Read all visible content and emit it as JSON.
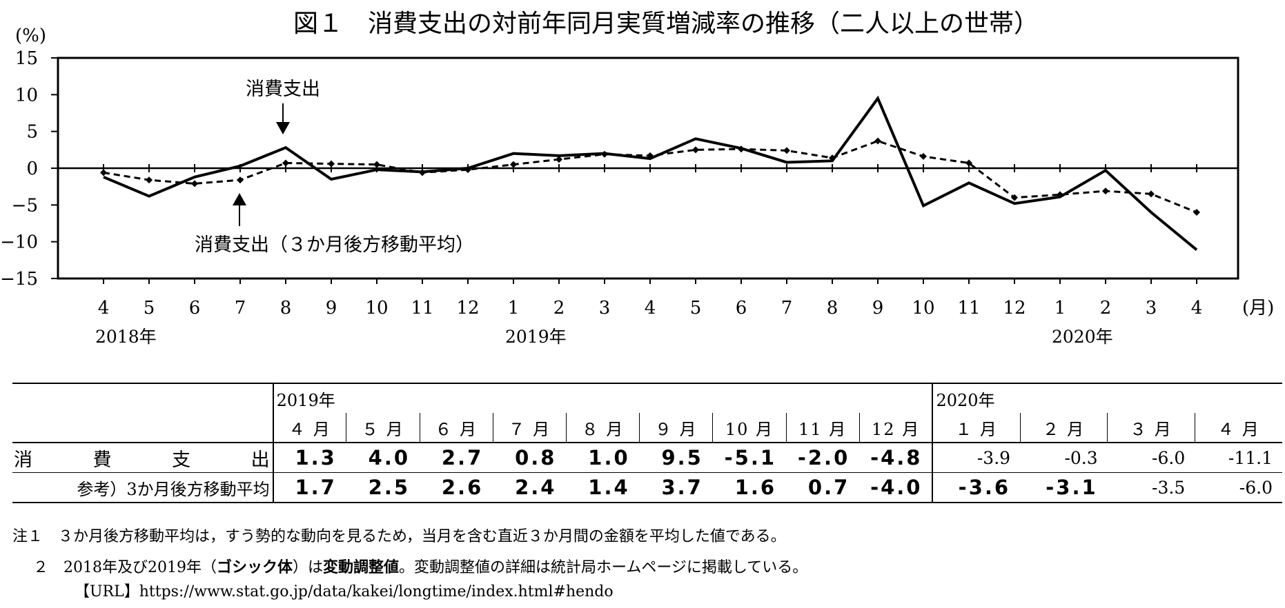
{
  "chart_data": {
    "type": "line",
    "title": "図１　消費支出の対前年同月実質増減率の推移（二人以上の世帯）",
    "ylabel": "(%)",
    "xlabel": "(月)",
    "ylim": [
      -15,
      15
    ],
    "yticks": [
      "15",
      "10",
      "5",
      "0",
      "-5",
      "-10",
      "-15"
    ],
    "categories": [
      "4",
      "5",
      "6",
      "7",
      "8",
      "9",
      "10",
      "11",
      "12",
      "1",
      "2",
      "3",
      "4",
      "5",
      "6",
      "7",
      "8",
      "9",
      "10",
      "11",
      "12",
      "1",
      "2",
      "3",
      "4"
    ],
    "year_labels": [
      {
        "label": "2018年",
        "index": 0
      },
      {
        "label": "2019年",
        "index": 9
      },
      {
        "label": "2020年",
        "index": 21
      }
    ],
    "grid": false,
    "series": [
      {
        "name": "消費支出",
        "style": "solid",
        "values": [
          -1.2,
          -3.8,
          -1.2,
          0.3,
          2.8,
          -1.5,
          -0.2,
          -0.5,
          0.0,
          2.0,
          1.7,
          2.0,
          1.3,
          4.0,
          2.7,
          0.8,
          1.0,
          9.5,
          -5.1,
          -2.0,
          -4.8,
          -3.9,
          -0.3,
          -6.0,
          -11.1
        ]
      },
      {
        "name": "消費支出（３か月後方移動平均）",
        "style": "dashed",
        "marker": "diamond",
        "values": [
          -0.6,
          -1.6,
          -2.1,
          -1.6,
          0.7,
          0.6,
          0.5,
          -0.6,
          -0.2,
          0.5,
          1.2,
          1.9,
          1.7,
          2.5,
          2.6,
          2.4,
          1.4,
          3.7,
          1.6,
          0.7,
          -4.0,
          -3.6,
          -3.1,
          -3.5,
          -6.0
        ]
      }
    ],
    "annotations": [
      "消費支出",
      "消費支出（３か月後方移動平均）"
    ]
  },
  "table": {
    "year_2019": "2019年",
    "year_2020": "2020年",
    "months": [
      "４ 月",
      "５ 月",
      "６ 月",
      "７ 月",
      "８ 月",
      "９ 月",
      "10 月",
      "11 月",
      "12 月",
      "１ 月",
      "２ 月",
      "３ 月",
      "４ 月"
    ],
    "row1": {
      "label": "消費支出",
      "values": [
        "1.3",
        "4.0",
        "2.7",
        "0.8",
        "1.0",
        "9.5",
        "-5.1",
        "-2.0",
        "-4.8",
        "-3.9",
        "-0.3",
        "-6.0",
        "-11.1"
      ]
    },
    "row2": {
      "label": "参考）3か月後方移動平均",
      "values": [
        "1.7",
        "2.5",
        "2.6",
        "2.4",
        "1.4",
        "3.7",
        "1.6",
        "0.7",
        "-4.0",
        "-3.6",
        "-3.1",
        "-3.5",
        "-6.0"
      ]
    },
    "bold_cells": {
      "row1": [
        0,
        1,
        2,
        3,
        4,
        5,
        6,
        7,
        8
      ],
      "row2": [
        0,
        1,
        2,
        3,
        4,
        5,
        6,
        7,
        8,
        9,
        10
      ]
    }
  },
  "notes": {
    "note1": "注１　３か月後方移動平均は，すう勢的な動向を見るため，当月を含む直近３か月間の金額を平均した値である。",
    "note2_prefix": "２　2018年及び2019年（",
    "note2_bold1": "ゴシック体",
    "note2_mid": "）は",
    "note2_bold2": "変動調整値",
    "note2_suffix": "。変動調整値の詳細は統計局ホームページに掲載している。",
    "url": "【URL】https://www.stat.go.jp/data/kakei/longtime/index.html#hendo"
  }
}
